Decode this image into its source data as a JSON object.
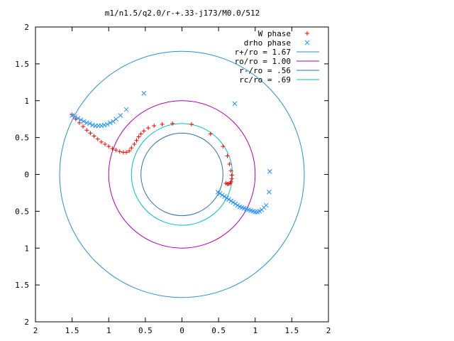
{
  "chart_data": {
    "type": "scatter",
    "title": "m1/n1.5/q2.0/r-+.33-j173/M0.0/512",
    "xlim": [
      -2,
      2
    ],
    "ylim": [
      -2,
      2
    ],
    "grid": false,
    "legend_position": "top-right",
    "x_tick_labels": [
      "2",
      "1.5",
      "1",
      "0.5",
      "0",
      "0.5",
      "1",
      "1.5",
      "2"
    ],
    "x_tick_values": [
      -2,
      -1.5,
      -1,
      -0.5,
      0,
      0.5,
      1,
      1.5,
      2
    ],
    "y_tick_labels": [
      "2",
      "1.5",
      "1",
      "0.5",
      "0",
      "0.5",
      "1",
      "1.5",
      "2"
    ],
    "y_tick_values": [
      2,
      1.5,
      1,
      0.5,
      0,
      -0.5,
      -1,
      -1.5,
      -2
    ],
    "series": [
      {
        "name": "W phase",
        "marker": "plus",
        "color": "#ff0000",
        "x": [
          -1.5,
          -1.45,
          -1.4,
          -1.35,
          -1.3,
          -1.25,
          -1.2,
          -1.15,
          -1.1,
          -1.05,
          -1.0,
          -0.95,
          -0.9,
          -0.85,
          -0.8,
          -0.76,
          -0.72,
          -0.69,
          -0.65,
          -0.62,
          -0.59,
          -0.56,
          -0.52,
          -0.46,
          -0.38,
          -0.27,
          -0.13,
          0.13,
          0.39,
          0.56,
          0.62,
          0.65,
          0.67,
          0.68,
          0.68,
          0.67,
          0.66,
          0.64,
          0.62,
          0.6
        ],
        "y": [
          0.81,
          0.75,
          0.7,
          0.65,
          0.6,
          0.56,
          0.52,
          0.48,
          0.44,
          0.41,
          0.38,
          0.35,
          0.33,
          0.31,
          0.3,
          0.3,
          0.32,
          0.36,
          0.41,
          0.46,
          0.51,
          0.55,
          0.59,
          0.63,
          0.66,
          0.68,
          0.69,
          0.68,
          0.55,
          0.38,
          0.25,
          0.14,
          0.05,
          -0.01,
          -0.06,
          -0.1,
          -0.12,
          -0.13,
          -0.13,
          -0.12
        ]
      },
      {
        "name": "drho phase",
        "marker": "cross",
        "color": "#1e90ff",
        "x": [
          -1.5,
          -1.46,
          -1.42,
          -1.38,
          -1.34,
          -1.3,
          -1.26,
          -1.22,
          -1.18,
          -1.14,
          -1.1,
          -1.06,
          -1.02,
          -0.98,
          -0.94,
          -0.9,
          -0.84,
          -0.76,
          -0.52,
          0.72,
          0.49,
          0.52,
          0.55,
          0.58,
          0.61,
          0.64,
          0.67,
          0.7,
          0.73,
          0.76,
          0.79,
          0.82,
          0.85,
          0.88,
          0.91,
          0.94,
          0.97,
          1.0,
          1.03,
          1.06,
          1.09,
          1.12,
          1.15,
          1.19,
          1.2
        ],
        "y": [
          0.8,
          0.78,
          0.76,
          0.74,
          0.72,
          0.7,
          0.69,
          0.67,
          0.66,
          0.66,
          0.66,
          0.67,
          0.68,
          0.7,
          0.72,
          0.75,
          0.8,
          0.88,
          1.1,
          0.96,
          -0.24,
          -0.26,
          -0.28,
          -0.3,
          -0.32,
          -0.34,
          -0.36,
          -0.38,
          -0.4,
          -0.42,
          -0.44,
          -0.45,
          -0.46,
          -0.47,
          -0.48,
          -0.49,
          -0.5,
          -0.51,
          -0.51,
          -0.5,
          -0.48,
          -0.45,
          -0.42,
          -0.24,
          0.04
        ]
      }
    ],
    "circles": [
      {
        "name": "r+/ro = 1.67",
        "r": 1.67,
        "color": "#2a8fc8"
      },
      {
        "name": "ro/ro = 1.00",
        "r": 1.0,
        "color": "#b000b0"
      },
      {
        "name": "r-/ro = .56",
        "r": 0.56,
        "color": "#2a6fb0"
      },
      {
        "name": "rc/ro = .69",
        "r": 0.69,
        "color": "#00c0c0"
      }
    ]
  }
}
